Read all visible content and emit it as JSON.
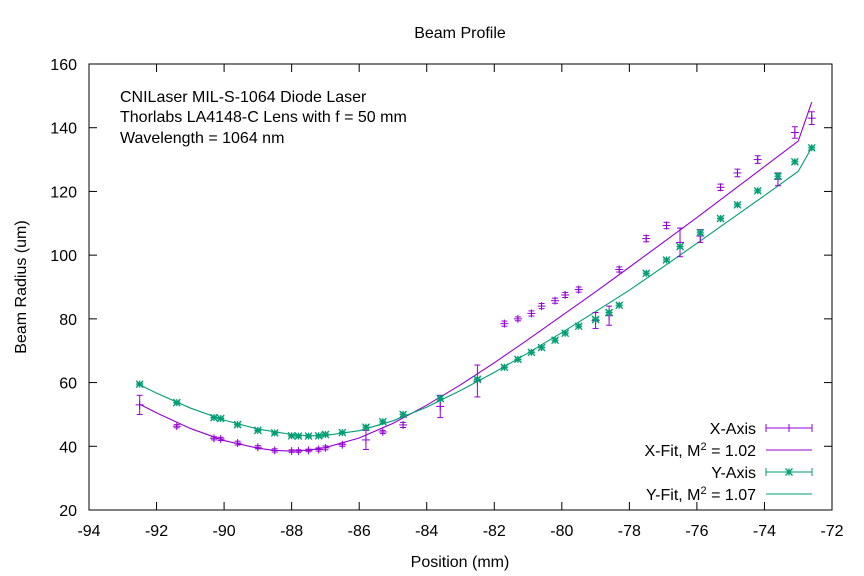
{
  "chart_data": {
    "type": "line",
    "title": "Beam Profile",
    "xlabel": "Position (mm)",
    "ylabel": "Beam Radius (um)",
    "xlim": [
      -94,
      -72
    ],
    "ylim": [
      20,
      160
    ],
    "xticks": [
      -94,
      -92,
      -90,
      -88,
      -86,
      -84,
      -82,
      -80,
      -78,
      -76,
      -74,
      -72
    ],
    "yticks": [
      20,
      40,
      60,
      80,
      100,
      120,
      140,
      160
    ],
    "grid": false,
    "annotations": [
      "CNILaser MIL-S-1064 Diode Laser",
      "Thorlabs LA4148-C Lens with f = 50 mm",
      "Wavelength = 1064 nm"
    ],
    "legend": {
      "position": "bottom-right",
      "entries": [
        {
          "label": "X-Axis",
          "kind": "points",
          "series": "x-axis"
        },
        {
          "label": "X-Fit, M",
          "sup": "2",
          "suffix": " = 1.02",
          "kind": "line",
          "series": "x-fit"
        },
        {
          "label": "Y-Axis",
          "kind": "points",
          "series": "y-axis"
        },
        {
          "label": "Y-Fit, M",
          "sup": "2",
          "suffix": " = 1.07",
          "kind": "line",
          "series": "y-fit"
        }
      ]
    },
    "series": [
      {
        "id": "x-axis",
        "name": "X-Axis",
        "color": "#9400d3",
        "marker": "plus",
        "points": [
          {
            "x": -92.5,
            "y": 53.0,
            "err": 3.0
          },
          {
            "x": -91.4,
            "y": 46.3,
            "err": 0.5
          },
          {
            "x": -90.3,
            "y": 42.5,
            "err": 0.5
          },
          {
            "x": -90.1,
            "y": 42.3,
            "err": 0.5
          },
          {
            "x": -89.6,
            "y": 41.0,
            "err": 0.6
          },
          {
            "x": -89.0,
            "y": 39.7,
            "err": 0.5
          },
          {
            "x": -88.5,
            "y": 38.7,
            "err": 0.5
          },
          {
            "x": -88.0,
            "y": 38.5,
            "err": 0.4
          },
          {
            "x": -87.8,
            "y": 38.5,
            "err": 0.4
          },
          {
            "x": -87.5,
            "y": 38.7,
            "err": 0.4
          },
          {
            "x": -87.2,
            "y": 39.0,
            "err": 0.5
          },
          {
            "x": -87.0,
            "y": 39.5,
            "err": 0.6
          },
          {
            "x": -86.5,
            "y": 40.5,
            "err": 0.5
          },
          {
            "x": -85.8,
            "y": 42.0,
            "err": 3.0
          },
          {
            "x": -85.3,
            "y": 44.5,
            "err": 0.5
          },
          {
            "x": -84.7,
            "y": 46.7,
            "err": 0.8
          },
          {
            "x": -83.6,
            "y": 52.5,
            "err": 3.5
          },
          {
            "x": -82.5,
            "y": 60.5,
            "err": 5.0
          },
          {
            "x": -81.7,
            "y": 78.5,
            "err": 0.8
          },
          {
            "x": -81.3,
            "y": 80.0,
            "err": 0.6
          },
          {
            "x": -80.9,
            "y": 81.7,
            "err": 0.8
          },
          {
            "x": -80.6,
            "y": 84.0,
            "err": 0.8
          },
          {
            "x": -80.2,
            "y": 85.7,
            "err": 0.8
          },
          {
            "x": -79.9,
            "y": 87.5,
            "err": 0.8
          },
          {
            "x": -79.5,
            "y": 89.2,
            "err": 0.8
          },
          {
            "x": -79.0,
            "y": 79.5,
            "err": 2.5
          },
          {
            "x": -78.6,
            "y": 81.0,
            "err": 3.0
          },
          {
            "x": -78.3,
            "y": 95.5,
            "err": 0.8
          },
          {
            "x": -77.5,
            "y": 105.2,
            "err": 1.0
          },
          {
            "x": -76.9,
            "y": 109.3,
            "err": 1.0
          },
          {
            "x": -76.5,
            "y": 104.0,
            "err": 4.5
          },
          {
            "x": -75.9,
            "y": 106.0,
            "err": 2.0
          },
          {
            "x": -75.3,
            "y": 121.3,
            "err": 1.0
          },
          {
            "x": -74.8,
            "y": 125.8,
            "err": 1.2
          },
          {
            "x": -74.2,
            "y": 130.0,
            "err": 1.2
          },
          {
            "x": -73.6,
            "y": 123.8,
            "err": 2.0
          },
          {
            "x": -73.1,
            "y": 138.5,
            "err": 1.8
          },
          {
            "x": -72.6,
            "y": 143.0,
            "err": 2.0
          }
        ]
      },
      {
        "id": "y-axis",
        "name": "Y-Axis",
        "color": "#009e73",
        "marker": "star",
        "points": [
          {
            "x": -92.5,
            "y": 59.5,
            "err": 0.4
          },
          {
            "x": -91.4,
            "y": 53.7,
            "err": 0.4
          },
          {
            "x": -90.3,
            "y": 49.0,
            "err": 0.4
          },
          {
            "x": -90.1,
            "y": 48.7,
            "err": 0.4
          },
          {
            "x": -89.6,
            "y": 46.8,
            "err": 0.4
          },
          {
            "x": -89.0,
            "y": 45.0,
            "err": 0.4
          },
          {
            "x": -88.5,
            "y": 44.2,
            "err": 0.4
          },
          {
            "x": -88.0,
            "y": 43.3,
            "err": 0.4
          },
          {
            "x": -87.8,
            "y": 43.2,
            "err": 0.4
          },
          {
            "x": -87.5,
            "y": 43.2,
            "err": 0.4
          },
          {
            "x": -87.2,
            "y": 43.3,
            "err": 0.4
          },
          {
            "x": -87.0,
            "y": 43.7,
            "err": 0.4
          },
          {
            "x": -86.5,
            "y": 44.3,
            "err": 0.4
          },
          {
            "x": -85.8,
            "y": 46.0,
            "err": 0.5
          },
          {
            "x": -85.3,
            "y": 47.7,
            "err": 0.5
          },
          {
            "x": -84.7,
            "y": 50.0,
            "err": 0.5
          },
          {
            "x": -83.6,
            "y": 55.0,
            "err": 0.5
          },
          {
            "x": -82.5,
            "y": 61.0,
            "err": 0.5
          },
          {
            "x": -81.7,
            "y": 64.8,
            "err": 0.5
          },
          {
            "x": -81.3,
            "y": 67.3,
            "err": 0.5
          },
          {
            "x": -80.9,
            "y": 69.5,
            "err": 0.5
          },
          {
            "x": -80.6,
            "y": 71.0,
            "err": 0.5
          },
          {
            "x": -80.2,
            "y": 73.3,
            "err": 0.5
          },
          {
            "x": -79.9,
            "y": 75.5,
            "err": 0.5
          },
          {
            "x": -79.5,
            "y": 77.7,
            "err": 0.5
          },
          {
            "x": -79.0,
            "y": 79.8,
            "err": 0.5
          },
          {
            "x": -78.6,
            "y": 82.0,
            "err": 0.5
          },
          {
            "x": -78.3,
            "y": 84.3,
            "err": 0.5
          },
          {
            "x": -77.5,
            "y": 94.3,
            "err": 0.5
          },
          {
            "x": -76.9,
            "y": 98.5,
            "err": 0.5
          },
          {
            "x": -76.5,
            "y": 102.7,
            "err": 0.5
          },
          {
            "x": -75.9,
            "y": 107.0,
            "err": 0.5
          },
          {
            "x": -75.3,
            "y": 111.5,
            "err": 0.5
          },
          {
            "x": -74.8,
            "y": 115.8,
            "err": 0.5
          },
          {
            "x": -74.2,
            "y": 120.2,
            "err": 0.5
          },
          {
            "x": -73.6,
            "y": 124.8,
            "err": 0.8
          },
          {
            "x": -73.1,
            "y": 129.3,
            "err": 0.5
          },
          {
            "x": -72.6,
            "y": 133.7,
            "err": 0.5
          }
        ]
      },
      {
        "id": "x-fit",
        "name": "X-Fit, M2 = 1.02",
        "color": "#9400d3",
        "kind": "line",
        "points": [
          {
            "x": -92.5,
            "y": 53.2
          },
          {
            "x": -92.0,
            "y": 50.5
          },
          {
            "x": -91.0,
            "y": 45.6
          },
          {
            "x": -90.0,
            "y": 41.8
          },
          {
            "x": -89.0,
            "y": 39.4
          },
          {
            "x": -88.5,
            "y": 38.7
          },
          {
            "x": -88.0,
            "y": 38.5
          },
          {
            "x": -87.5,
            "y": 38.8
          },
          {
            "x": -87.0,
            "y": 39.6
          },
          {
            "x": -86.0,
            "y": 42.6
          },
          {
            "x": -85.0,
            "y": 47.2
          },
          {
            "x": -84.0,
            "y": 52.9
          },
          {
            "x": -83.0,
            "y": 59.3
          },
          {
            "x": -82.0,
            "y": 66.2
          },
          {
            "x": -81.0,
            "y": 73.5
          },
          {
            "x": -80.0,
            "y": 81.0
          },
          {
            "x": -79.0,
            "y": 88.5
          },
          {
            "x": -78.0,
            "y": 96.2
          },
          {
            "x": -77.0,
            "y": 104.0
          },
          {
            "x": -76.0,
            "y": 111.8
          },
          {
            "x": -75.0,
            "y": 119.8
          },
          {
            "x": -74.0,
            "y": 127.8
          },
          {
            "x": -73.0,
            "y": 135.8
          },
          {
            "x": -72.6,
            "y": 148.0
          }
        ]
      },
      {
        "id": "y-fit",
        "name": "Y-Fit, M2 = 1.07",
        "color": "#009e73",
        "kind": "line",
        "points": [
          {
            "x": -92.5,
            "y": 59.3
          },
          {
            "x": -92.0,
            "y": 56.7
          },
          {
            "x": -91.0,
            "y": 52.0
          },
          {
            "x": -90.0,
            "y": 48.2
          },
          {
            "x": -89.0,
            "y": 45.4
          },
          {
            "x": -88.0,
            "y": 43.7
          },
          {
            "x": -87.5,
            "y": 43.3
          },
          {
            "x": -87.0,
            "y": 43.4
          },
          {
            "x": -86.0,
            "y": 44.9
          },
          {
            "x": -85.0,
            "y": 48.0
          },
          {
            "x": -84.0,
            "y": 52.3
          },
          {
            "x": -83.0,
            "y": 57.5
          },
          {
            "x": -82.0,
            "y": 63.2
          },
          {
            "x": -81.0,
            "y": 69.3
          },
          {
            "x": -80.0,
            "y": 75.7
          },
          {
            "x": -79.0,
            "y": 82.3
          },
          {
            "x": -78.0,
            "y": 89.0
          },
          {
            "x": -77.0,
            "y": 96.3
          },
          {
            "x": -76.0,
            "y": 103.7
          },
          {
            "x": -75.0,
            "y": 111.2
          },
          {
            "x": -74.0,
            "y": 118.7
          },
          {
            "x": -73.0,
            "y": 126.3
          },
          {
            "x": -72.6,
            "y": 133.8
          }
        ]
      }
    ]
  }
}
